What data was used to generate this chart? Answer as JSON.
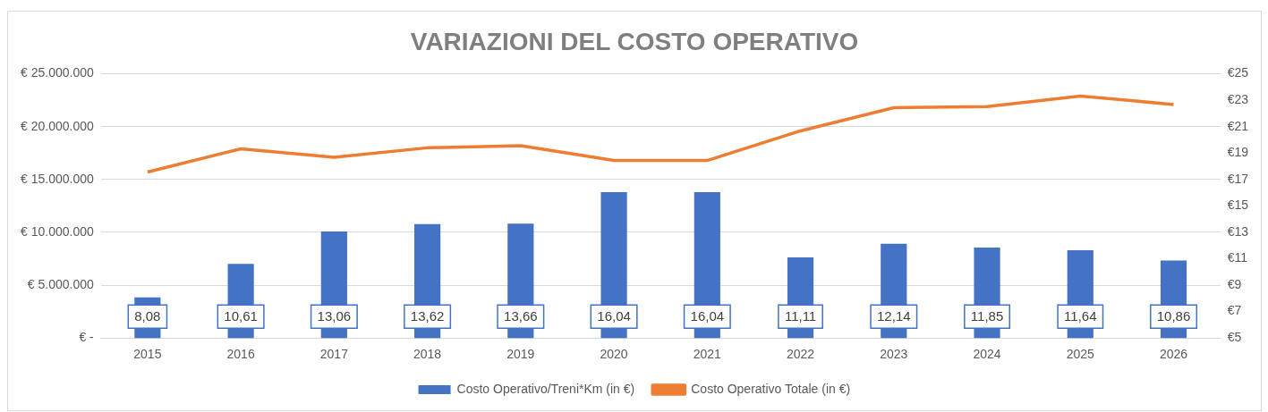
{
  "chart_data": {
    "type": "bar",
    "title": "VARIAZIONI DEL COSTO OPERATIVO",
    "categories": [
      "2015",
      "2016",
      "2017",
      "2018",
      "2019",
      "2020",
      "2021",
      "2022",
      "2023",
      "2024",
      "2025",
      "2026"
    ],
    "series": [
      {
        "name": "Costo Operativo/Treni*Km (in €)",
        "axis": "y2",
        "color": "#4472c4",
        "values": [
          8.08,
          10.61,
          13.06,
          13.62,
          13.66,
          16.04,
          16.04,
          11.11,
          12.14,
          11.85,
          11.64,
          10.86
        ],
        "value_labels": [
          "8,08",
          "10,61",
          "13,06",
          "13,62",
          "13,66",
          "16,04",
          "16,04",
          "11,11",
          "12,14",
          "11,85",
          "11,64",
          "10,86"
        ]
      },
      {
        "name": "Costo Operativo Totale (in €)",
        "type": "line",
        "color": "#ed7d31",
        "values": [
          15700000,
          17900000,
          17100000,
          18000000,
          18200000,
          16800000,
          16800000,
          19600000,
          21800000,
          21900000,
          22900000,
          22100000
        ]
      }
    ],
    "ylim": [
      0,
      25000000
    ],
    "yticks": [
      {
        "value": 0,
        "label": "€ -"
      },
      {
        "value": 5000000,
        "label": "€ 5.000.000"
      },
      {
        "value": 10000000,
        "label": "€ 10.000.000"
      },
      {
        "value": 15000000,
        "label": "€ 15.000.000"
      },
      {
        "value": 20000000,
        "label": "€ 20.000.000"
      },
      {
        "value": 25000000,
        "label": "€ 25.000.000"
      }
    ],
    "y2lim": [
      5,
      25
    ],
    "y2ticks": [
      {
        "value": 5,
        "label": "€5"
      },
      {
        "value": 7,
        "label": "€7"
      },
      {
        "value": 9,
        "label": "€9"
      },
      {
        "value": 11,
        "label": "€11"
      },
      {
        "value": 13,
        "label": "€13"
      },
      {
        "value": 15,
        "label": "€15"
      },
      {
        "value": 17,
        "label": "€17"
      },
      {
        "value": 19,
        "label": "€19"
      },
      {
        "value": 21,
        "label": "€21"
      },
      {
        "value": 23,
        "label": "€23"
      },
      {
        "value": 25,
        "label": "€25"
      }
    ],
    "grid": "y",
    "legend": "bottom",
    "marker": "none"
  }
}
